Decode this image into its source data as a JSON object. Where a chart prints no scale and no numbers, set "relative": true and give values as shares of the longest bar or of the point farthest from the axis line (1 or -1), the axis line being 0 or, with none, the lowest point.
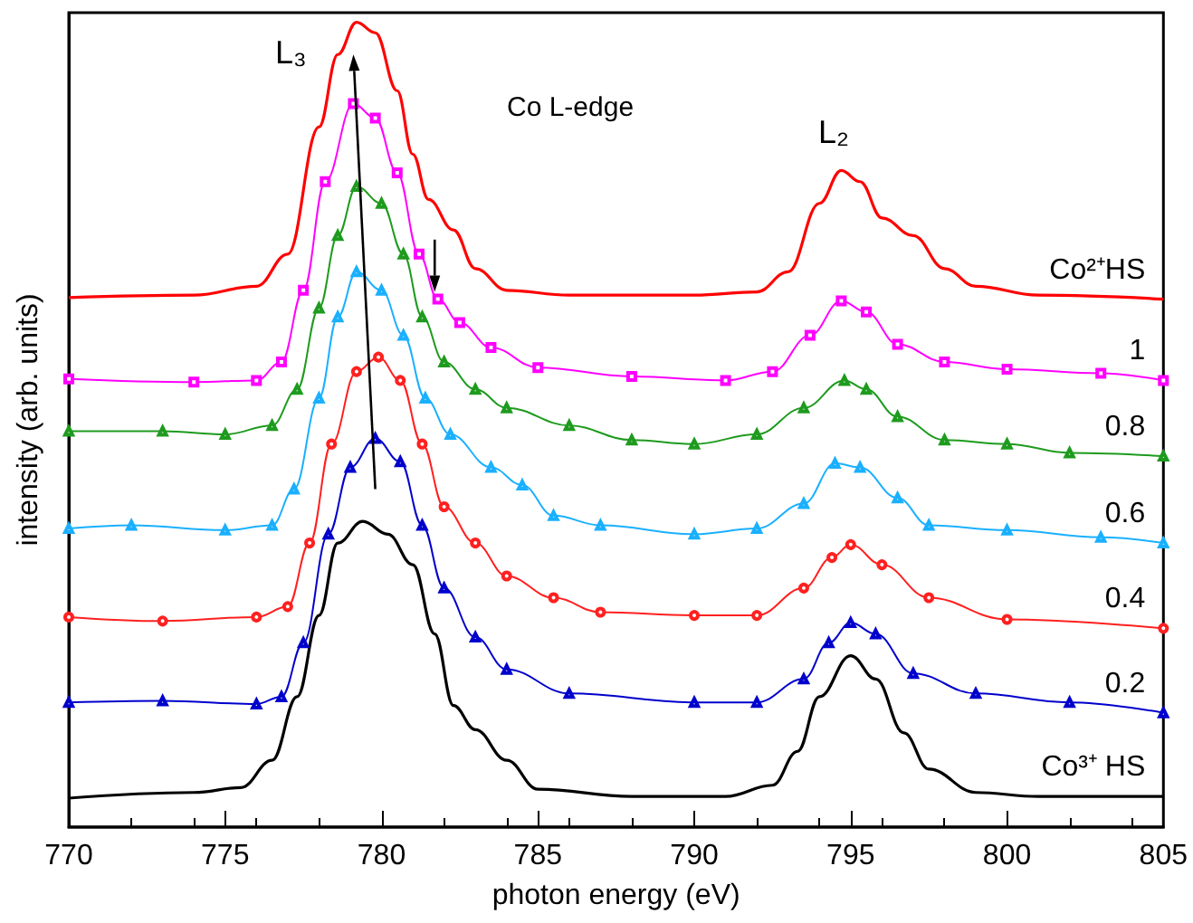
{
  "chart_data": {
    "type": "line",
    "xlabel": "photon energy (eV)",
    "ylabel": "intensity (arb. units)",
    "relative": true,
    "xlim": [
      770,
      805
    ],
    "xticks": [
      770,
      775,
      780,
      785,
      790,
      795,
      800,
      805
    ],
    "grid": false,
    "legend": false,
    "annotations": [
      "L₃",
      "Co L-edge",
      "L₂"
    ],
    "series": [
      {
        "name": "Co²⁺HS",
        "color": "#ff0000",
        "marker": "none",
        "x": [
          770,
          774,
          776,
          777,
          778,
          778.6,
          779.2,
          779.8,
          780.5,
          781,
          781.5,
          782.3,
          783,
          784,
          786,
          790,
          792,
          793,
          794,
          794.7,
          795.3,
          796,
          797,
          798,
          799,
          801,
          805
        ],
        "values": [
          0.658,
          0.661,
          0.672,
          0.712,
          0.87,
          0.96,
          1,
          0.987,
          0.915,
          0.836,
          0.78,
          0.742,
          0.694,
          0.667,
          0.661,
          0.661,
          0.665,
          0.69,
          0.775,
          0.816,
          0.802,
          0.757,
          0.735,
          0.694,
          0.672,
          0.661,
          0.656
        ]
      },
      {
        "name": "1",
        "color": "#ff00ff",
        "marker": "square",
        "x": [
          770,
          774,
          776,
          776.8,
          777.5,
          778.2,
          779.1,
          779.8,
          780.5,
          781.2,
          781.8,
          782.5,
          783.5,
          785,
          788,
          791,
          792.5,
          793.7,
          794.7,
          795.5,
          796.5,
          798,
          800,
          803,
          805
        ],
        "values": [
          0.557,
          0.553,
          0.555,
          0.578,
          0.667,
          0.802,
          0.899,
          0.881,
          0.813,
          0.712,
          0.656,
          0.627,
          0.596,
          0.571,
          0.56,
          0.555,
          0.566,
          0.611,
          0.654,
          0.64,
          0.6,
          0.578,
          0.569,
          0.564,
          0.555
        ]
      },
      {
        "name": "0.8",
        "color": "#1e9b1e",
        "marker": "triangle",
        "x": [
          770,
          773,
          775,
          776.5,
          777.3,
          778,
          778.6,
          779.2,
          780,
          780.7,
          781.3,
          782,
          783,
          784,
          786,
          788,
          790,
          792,
          793.5,
          794.8,
          795.5,
          796.5,
          798,
          800,
          802,
          805
        ],
        "values": [
          0.492,
          0.492,
          0.488,
          0.499,
          0.544,
          0.645,
          0.735,
          0.796,
          0.775,
          0.712,
          0.634,
          0.578,
          0.544,
          0.521,
          0.499,
          0.481,
          0.476,
          0.488,
          0.521,
          0.555,
          0.544,
          0.51,
          0.481,
          0.476,
          0.465,
          0.461
        ]
      },
      {
        "name": "0.6",
        "color": "#1ab0ff",
        "marker": "triangle",
        "x": [
          770,
          772,
          775,
          776.5,
          777.2,
          778,
          778.6,
          779.2,
          780,
          780.7,
          781.4,
          782.2,
          783.5,
          784.5,
          785.5,
          787,
          790,
          792,
          793.5,
          794.5,
          795.3,
          796.5,
          797.5,
          800,
          803,
          805
        ],
        "values": [
          0.371,
          0.375,
          0.369,
          0.375,
          0.42,
          0.533,
          0.634,
          0.69,
          0.667,
          0.611,
          0.533,
          0.488,
          0.447,
          0.425,
          0.387,
          0.375,
          0.364,
          0.371,
          0.402,
          0.452,
          0.447,
          0.409,
          0.375,
          0.369,
          0.36,
          0.353
        ]
      },
      {
        "name": "0.4",
        "color": "#ff2020",
        "marker": "circle",
        "x": [
          770,
          773,
          776,
          777,
          777.7,
          778.4,
          779.2,
          779.9,
          780.6,
          781.3,
          782,
          783,
          784,
          785.5,
          787,
          790,
          792,
          793.5,
          794.4,
          795,
          796,
          797.5,
          800,
          805
        ],
        "values": [
          0.261,
          0.256,
          0.261,
          0.274,
          0.353,
          0.476,
          0.566,
          0.584,
          0.555,
          0.476,
          0.398,
          0.353,
          0.312,
          0.285,
          0.267,
          0.263,
          0.263,
          0.297,
          0.335,
          0.351,
          0.326,
          0.285,
          0.258,
          0.247
        ]
      },
      {
        "name": "0.2",
        "color": "#0000cc",
        "marker": "triangle",
        "x": [
          770,
          773,
          776,
          776.8,
          777.5,
          778.3,
          779,
          779.8,
          780.6,
          781.3,
          782,
          783,
          784,
          786,
          790,
          792,
          793.5,
          794.3,
          795,
          795.8,
          797,
          799,
          802,
          805
        ],
        "values": [
          0.155,
          0.157,
          0.153,
          0.162,
          0.229,
          0.364,
          0.447,
          0.483,
          0.454,
          0.375,
          0.297,
          0.236,
          0.196,
          0.166,
          0.155,
          0.155,
          0.184,
          0.229,
          0.254,
          0.24,
          0.191,
          0.166,
          0.155,
          0.142
        ]
      },
      {
        "name": "Co³⁺ HS",
        "color": "#000000",
        "marker": "none",
        "x": [
          770,
          774,
          775.5,
          776.5,
          777.3,
          778,
          778.6,
          779.4,
          780.2,
          781,
          781.7,
          782.3,
          783,
          784,
          785,
          788,
          791,
          792.5,
          793.3,
          794,
          795,
          795.8,
          796.7,
          797.5,
          799,
          801,
          805
        ],
        "values": [
          0.036,
          0.043,
          0.049,
          0.083,
          0.162,
          0.263,
          0.353,
          0.38,
          0.364,
          0.326,
          0.24,
          0.151,
          0.121,
          0.083,
          0.047,
          0.038,
          0.038,
          0.052,
          0.094,
          0.162,
          0.213,
          0.184,
          0.117,
          0.072,
          0.043,
          0.038,
          0.038
        ]
      }
    ]
  }
}
